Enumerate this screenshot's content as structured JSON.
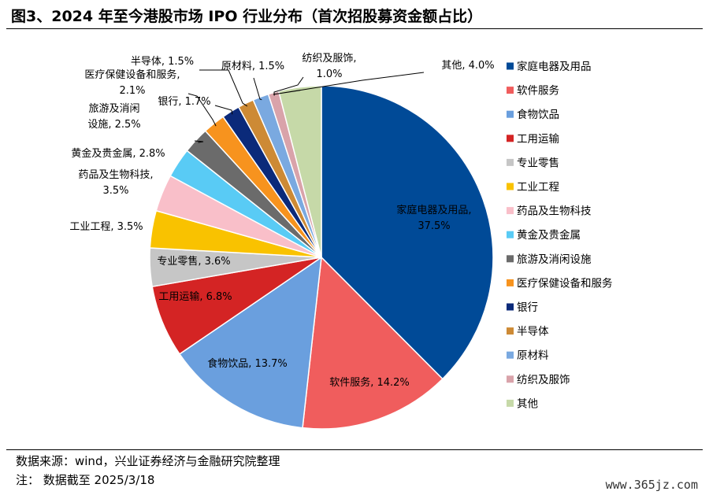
{
  "figure": {
    "title": "图3、2024 年至今港股市场 IPO 行业分布（首次招股募资金额占比）"
  },
  "footer": {
    "source": "数据来源：wind，兴业证券经济与金融研究院整理",
    "note": "注： 数据截至 2025/3/18",
    "watermark": "www.365jz.com"
  },
  "chart_data": {
    "type": "pie",
    "title": "2024 年至今港股市场 IPO 行业分布（首次招股募资金额占比）",
    "legend_position": "right",
    "start_angle": "12 o'clock",
    "direction": "clockwise",
    "slices": [
      {
        "name": "家庭电器及用品",
        "value": 37.5,
        "label": "家庭电器及用品,\n37.5%",
        "color": "#004a97"
      },
      {
        "name": "软件服务",
        "value": 14.2,
        "label": "软件服务, 14.2%",
        "color": "#f05d5d"
      },
      {
        "name": "食物饮品",
        "value": 13.7,
        "label": "食物饮品, 13.7%",
        "color": "#6a9fde"
      },
      {
        "name": "工用运输",
        "value": 6.8,
        "label": "工用运输, 6.8%",
        "color": "#d42424"
      },
      {
        "name": "专业零售",
        "value": 3.6,
        "label": "专业零售, 3.6%",
        "color": "#c6c6c6"
      },
      {
        "name": "工业工程",
        "value": 3.5,
        "label": "工业工程, 3.5%",
        "color": "#f9c200"
      },
      {
        "name": "药品及生物科技",
        "value": 3.5,
        "label": "药品及生物科技,\n3.5%",
        "color": "#f9bfc9"
      },
      {
        "name": "黄金及贵金属",
        "value": 2.8,
        "label": "黄金及贵金属, 2.8%",
        "color": "#59cbf5"
      },
      {
        "name": "旅游及消闲设施",
        "value": 2.5,
        "label": "旅游及消闲\n设施, 2.5%",
        "color": "#6b6b6b"
      },
      {
        "name": "医疗保健设备和服务",
        "value": 2.1,
        "label": "医疗保健设备和服务,\n2.1%",
        "color": "#f7931e"
      },
      {
        "name": "银行",
        "value": 1.7,
        "label": "银行, 1.7%",
        "color": "#0b2a7a"
      },
      {
        "name": "半导体",
        "value": 1.5,
        "label": "半导体, 1.5%",
        "color": "#cd8a35"
      },
      {
        "name": "原材料",
        "value": 1.5,
        "label": "原材料, 1.5%",
        "color": "#7aa9e0"
      },
      {
        "name": "纺织及服饰",
        "value": 1.0,
        "label": "纺织及服饰,\n1.0%",
        "color": "#d9a3aa"
      },
      {
        "name": "其他",
        "value": 4.0,
        "label": "其他, 4.0%",
        "color": "#c6d9a8"
      }
    ]
  }
}
